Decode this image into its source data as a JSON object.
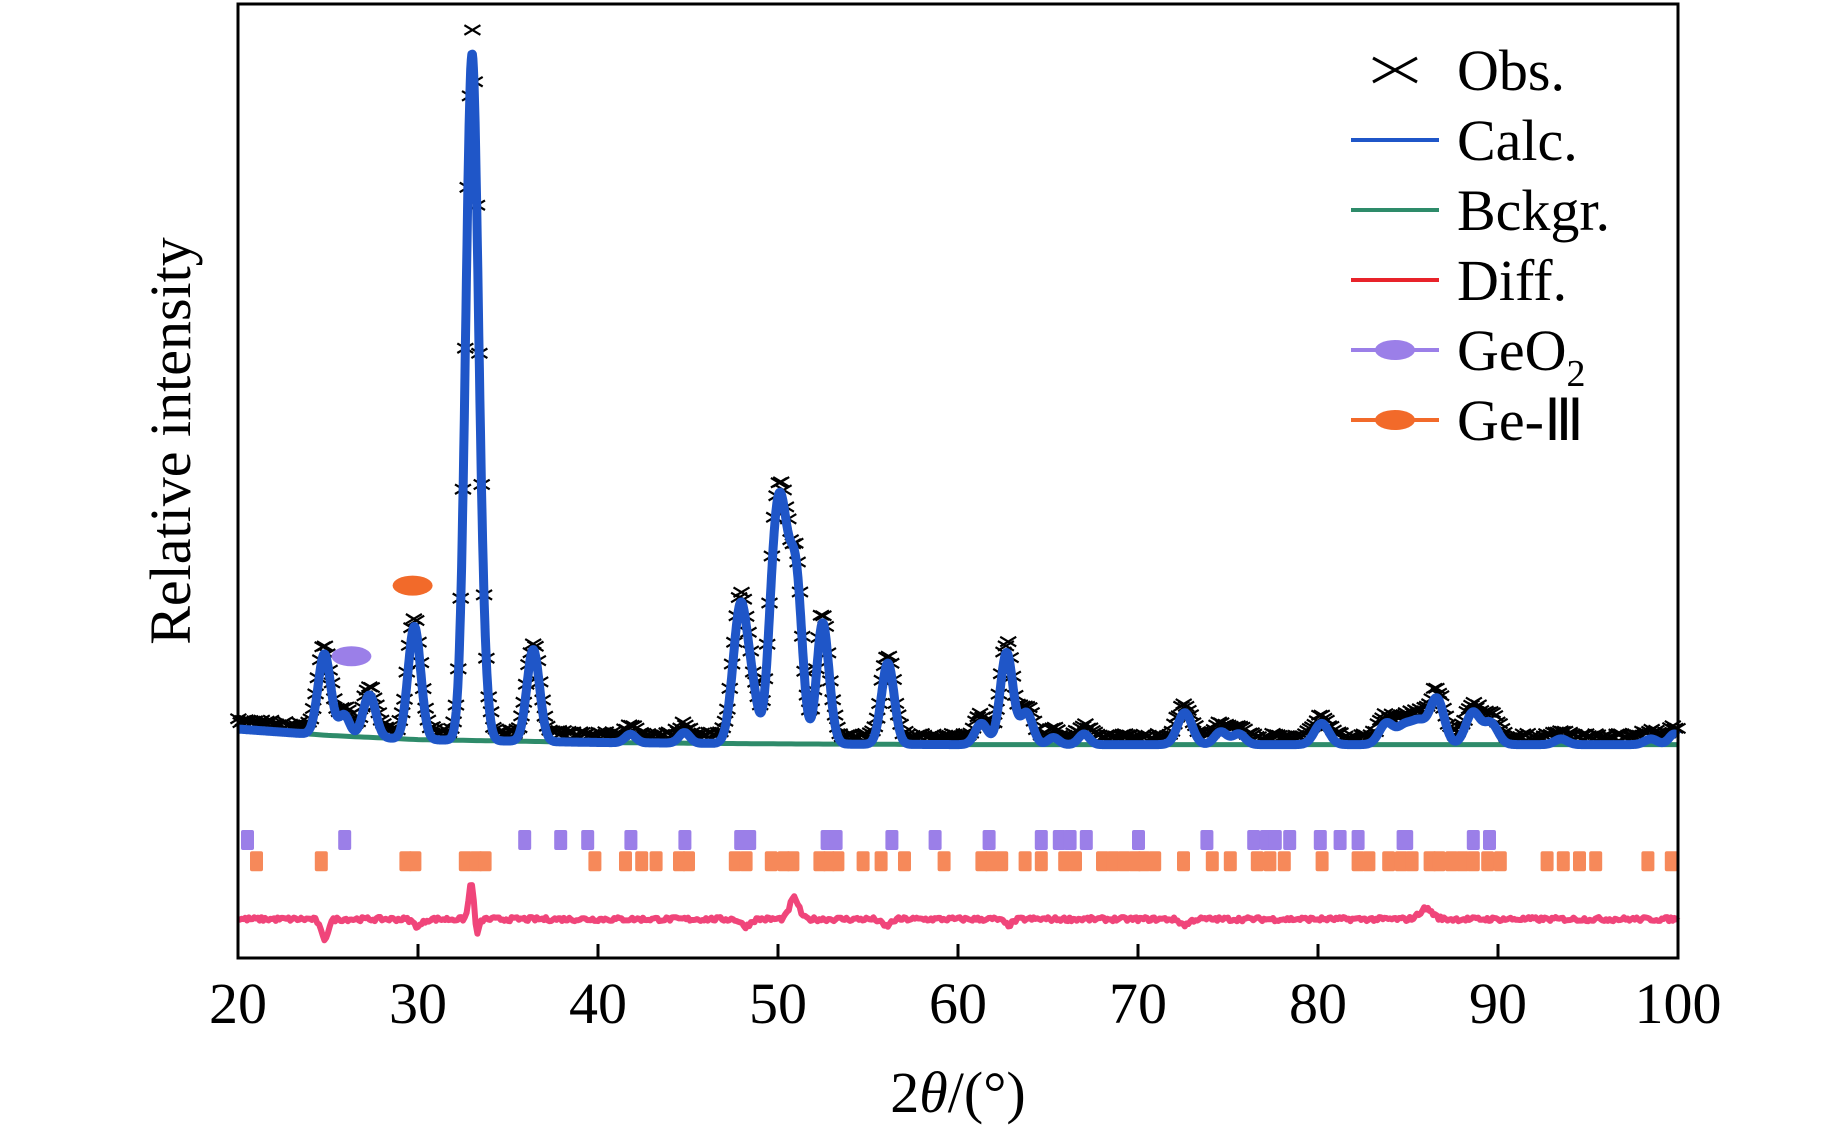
{
  "chart_data": {
    "type": "line",
    "title": "",
    "xlabel_parts": {
      "prefix": "2",
      "italic": "θ",
      "suffix": "/(°)"
    },
    "ylabel": "Relative intensity",
    "xlim": [
      20,
      100
    ],
    "ylim": [
      -0.3,
      1.05
    ],
    "x_ticks": [
      20,
      30,
      40,
      50,
      60,
      70,
      80,
      90,
      100
    ],
    "y_ticks_shown": false,
    "grid": false,
    "legend": {
      "placement": "top-right",
      "entries": [
        {
          "label": "Obs.",
          "sub": "",
          "marker": "x",
          "color": "#000000"
        },
        {
          "label": "Calc.",
          "sub": "",
          "marker": "line",
          "color": "#1f56c8"
        },
        {
          "label": "Bckgr.",
          "sub": "",
          "marker": "line",
          "color": "#2e8b6a"
        },
        {
          "label": "Diff.",
          "sub": "",
          "marker": "line",
          "color": "#e8232a"
        },
        {
          "label": "GeO",
          "sub": "2",
          "marker": "line-ellipse",
          "color": "#9b7fe8"
        },
        {
          "label": "Ge-Ⅲ",
          "sub": "",
          "marker": "line-ellipse",
          "color": "#f26a2a"
        }
      ]
    },
    "background": {
      "x": [
        20,
        25,
        30,
        40,
        50,
        60,
        70,
        80,
        90,
        100
      ],
      "y": [
        0.024,
        0.015,
        0.009,
        0.005,
        0.003,
        0.002,
        0.002,
        0.002,
        0.002,
        0.002
      ]
    },
    "peaks": [
      {
        "pos": 24.8,
        "height": 0.115,
        "width": 0.35
      },
      {
        "pos": 25.9,
        "height": 0.03,
        "width": 0.3
      },
      {
        "pos": 27.3,
        "height": 0.06,
        "width": 0.35
      },
      {
        "pos": 29.8,
        "height": 0.16,
        "width": 0.35
      },
      {
        "pos": 33.0,
        "height": 0.965,
        "width": 0.35
      },
      {
        "pos": 33.6,
        "height": 0.05,
        "width": 0.3
      },
      {
        "pos": 36.4,
        "height": 0.13,
        "width": 0.35
      },
      {
        "pos": 41.8,
        "height": 0.012,
        "width": 0.3
      },
      {
        "pos": 44.8,
        "height": 0.015,
        "width": 0.3
      },
      {
        "pos": 47.6,
        "height": 0.06,
        "width": 0.35
      },
      {
        "pos": 48.0,
        "height": 0.16,
        "width": 0.35
      },
      {
        "pos": 48.6,
        "height": 0.06,
        "width": 0.3
      },
      {
        "pos": 49.8,
        "height": 0.22,
        "width": 0.35
      },
      {
        "pos": 50.3,
        "height": 0.23,
        "width": 0.35
      },
      {
        "pos": 51.0,
        "height": 0.23,
        "width": 0.35
      },
      {
        "pos": 52.4,
        "height": 0.09,
        "width": 0.3
      },
      {
        "pos": 52.6,
        "height": 0.09,
        "width": 0.35
      },
      {
        "pos": 56.1,
        "height": 0.115,
        "width": 0.35
      },
      {
        "pos": 61.3,
        "height": 0.03,
        "width": 0.35
      },
      {
        "pos": 62.7,
        "height": 0.13,
        "width": 0.35
      },
      {
        "pos": 63.8,
        "height": 0.045,
        "width": 0.35
      },
      {
        "pos": 65.3,
        "height": 0.01,
        "width": 0.3
      },
      {
        "pos": 67.0,
        "height": 0.015,
        "width": 0.3
      },
      {
        "pos": 72.6,
        "height": 0.045,
        "width": 0.4
      },
      {
        "pos": 74.6,
        "height": 0.018,
        "width": 0.35
      },
      {
        "pos": 75.6,
        "height": 0.015,
        "width": 0.35
      },
      {
        "pos": 80.2,
        "height": 0.03,
        "width": 0.4
      },
      {
        "pos": 83.8,
        "height": 0.03,
        "width": 0.4
      },
      {
        "pos": 84.8,
        "height": 0.025,
        "width": 0.4
      },
      {
        "pos": 85.6,
        "height": 0.03,
        "width": 0.4
      },
      {
        "pos": 86.6,
        "height": 0.065,
        "width": 0.4
      },
      {
        "pos": 88.6,
        "height": 0.045,
        "width": 0.4
      },
      {
        "pos": 89.6,
        "height": 0.03,
        "width": 0.4
      },
      {
        "pos": 93.5,
        "height": 0.008,
        "width": 0.35
      },
      {
        "pos": 98.5,
        "height": 0.008,
        "width": 0.35
      },
      {
        "pos": 99.8,
        "height": 0.015,
        "width": 0.3
      }
    ],
    "obs_noise": 0.008,
    "diff_curve": {
      "baseline": -0.245,
      "features": [
        {
          "pos": 24.8,
          "amp": -0.028,
          "width": 0.2
        },
        {
          "pos": 30.0,
          "amp": -0.01,
          "width": 0.25
        },
        {
          "pos": 33.0,
          "amp": 0.065,
          "width": 0.15
        },
        {
          "pos": 33.2,
          "amp": -0.035,
          "width": 0.15
        },
        {
          "pos": 50.9,
          "amp": 0.03,
          "width": 0.25
        },
        {
          "pos": 48.2,
          "amp": -0.01,
          "width": 0.25
        },
        {
          "pos": 56.0,
          "amp": -0.01,
          "width": 0.25
        },
        {
          "pos": 62.8,
          "amp": -0.008,
          "width": 0.25
        },
        {
          "pos": 72.6,
          "amp": -0.008,
          "width": 0.25
        },
        {
          "pos": 86.0,
          "amp": 0.015,
          "width": 0.35
        }
      ]
    },
    "series": [
      {
        "name": "GeO2",
        "type": "reflection_ticks",
        "color": "#9b7fe8",
        "level": -0.133,
        "positions": [
          20.5,
          25.9,
          35.9,
          37.9,
          39.4,
          41.8,
          44.8,
          47.9,
          48.4,
          52.7,
          53.2,
          56.3,
          58.7,
          61.7,
          64.6,
          65.6,
          66.2,
          67.1,
          70.0,
          73.8,
          76.4,
          77.1,
          77.6,
          78.4,
          80.1,
          81.2,
          82.2,
          84.7,
          84.9,
          88.6,
          89.5
        ]
      },
      {
        "name": "Ge-Ⅲ",
        "type": "reflection_ticks",
        "color": "#f6895a",
        "level": -0.163,
        "positions": [
          21.0,
          24.6,
          29.3,
          29.8,
          32.6,
          33.2,
          33.7,
          39.8,
          41.5,
          42.4,
          43.2,
          44.5,
          45.0,
          47.6,
          48.2,
          49.6,
          50.3,
          50.8,
          52.3,
          52.8,
          53.3,
          54.7,
          55.7,
          57.0,
          59.2,
          61.3,
          61.8,
          62.4,
          63.7,
          64.6,
          65.9,
          66.5,
          68.0,
          68.6,
          69.2,
          69.8,
          70.3,
          70.9,
          72.5,
          74.1,
          75.1,
          76.6,
          77.3,
          78.1,
          80.2,
          82.2,
          82.8,
          83.9,
          84.6,
          85.2,
          86.2,
          86.7,
          87.4,
          88.0,
          88.6,
          89.4,
          90.1,
          92.7,
          93.6,
          94.5,
          95.4,
          98.3,
          99.6
        ]
      }
    ],
    "annotations": [
      {
        "marker": "GeO2",
        "x": 26.3,
        "y": 0.127,
        "color": "#9b7fe8"
      },
      {
        "marker": "Ge-Ⅲ",
        "x": 29.7,
        "y": 0.227,
        "color": "#f26a2a"
      }
    ]
  }
}
